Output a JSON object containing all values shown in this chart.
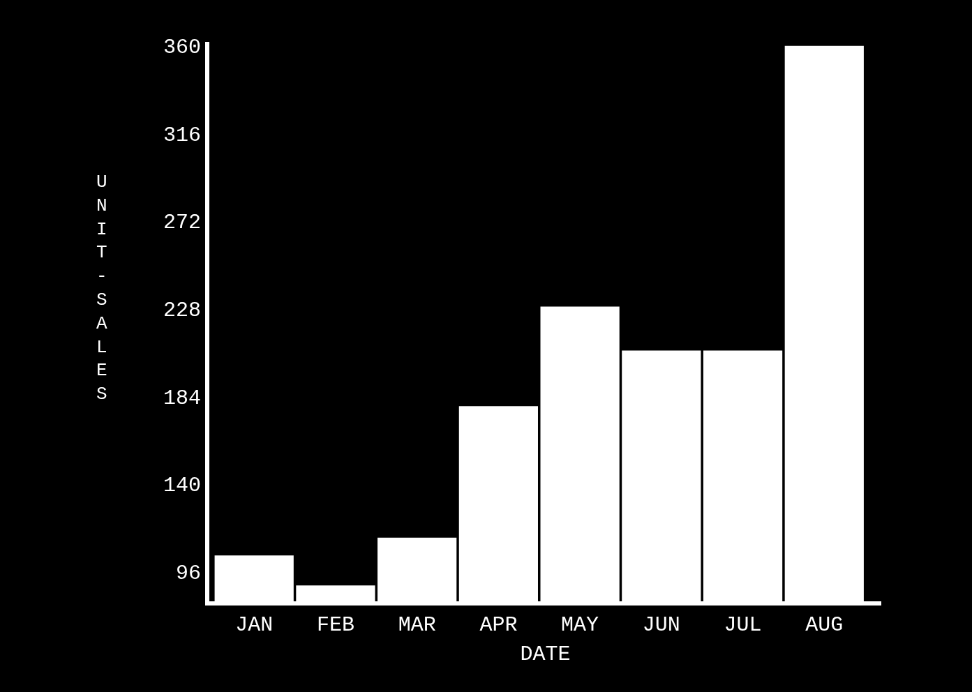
{
  "chart_data": {
    "type": "bar",
    "xlabel": "DATE",
    "ylabel": "UNIT-SALES",
    "categories": [
      "JAN",
      "FEB",
      "MAR",
      "APR",
      "MAY",
      "JUN",
      "JUL",
      "AUG"
    ],
    "values": [
      104,
      89,
      113,
      179,
      229,
      207,
      207,
      360
    ],
    "color": "#ffffff",
    "ylim": [
      81,
      362
    ],
    "yticks": [
      96,
      140,
      184,
      228,
      272,
      316,
      360
    ],
    "grid": false
  }
}
